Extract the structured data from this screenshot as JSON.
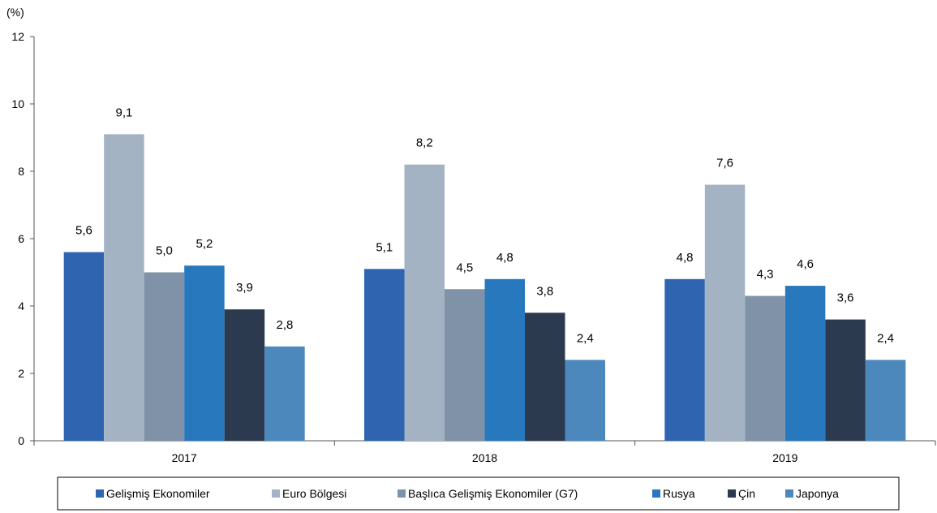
{
  "chart_data": {
    "type": "bar",
    "unit_label": "(%)",
    "categories": [
      "2017",
      "2018",
      "2019"
    ],
    "series": [
      {
        "name": "Gelişmiş Ekonomiler",
        "values": [
          5.6,
          5.1,
          4.8
        ],
        "labels": [
          "5,6",
          "5,1",
          "4,8"
        ],
        "color": "#2e64b0"
      },
      {
        "name": "Euro Bölgesi",
        "values": [
          9.1,
          8.2,
          7.6
        ],
        "labels": [
          "9,1",
          "8,2",
          "7,6"
        ],
        "color": "#a4b3c4"
      },
      {
        "name": "Başlıca Gelişmiş Ekonomiler (G7)",
        "values": [
          5.0,
          4.5,
          4.3
        ],
        "labels": [
          "5,0",
          "4,5",
          "4,3"
        ],
        "color": "#7f92a8"
      },
      {
        "name": "Rusya",
        "values": [
          5.2,
          4.8,
          4.6
        ],
        "labels": [
          "5,2",
          "4,8",
          "4,6"
        ],
        "color": "#2878be"
      },
      {
        "name": "Çin",
        "values": [
          3.9,
          3.8,
          3.6
        ],
        "labels": [
          "3,9",
          "3,8",
          "3,6"
        ],
        "color": "#2b3a4e"
      },
      {
        "name": "Japonya",
        "values": [
          2.8,
          2.4,
          2.4
        ],
        "labels": [
          "2,8",
          "2,4",
          "2,4"
        ],
        "color": "#4d88bd"
      }
    ],
    "yticks": [
      "0",
      "2",
      "4",
      "6",
      "8",
      "10",
      "12"
    ],
    "ylim": [
      0,
      12
    ],
    "grid": false,
    "legend_position": "bottom"
  }
}
